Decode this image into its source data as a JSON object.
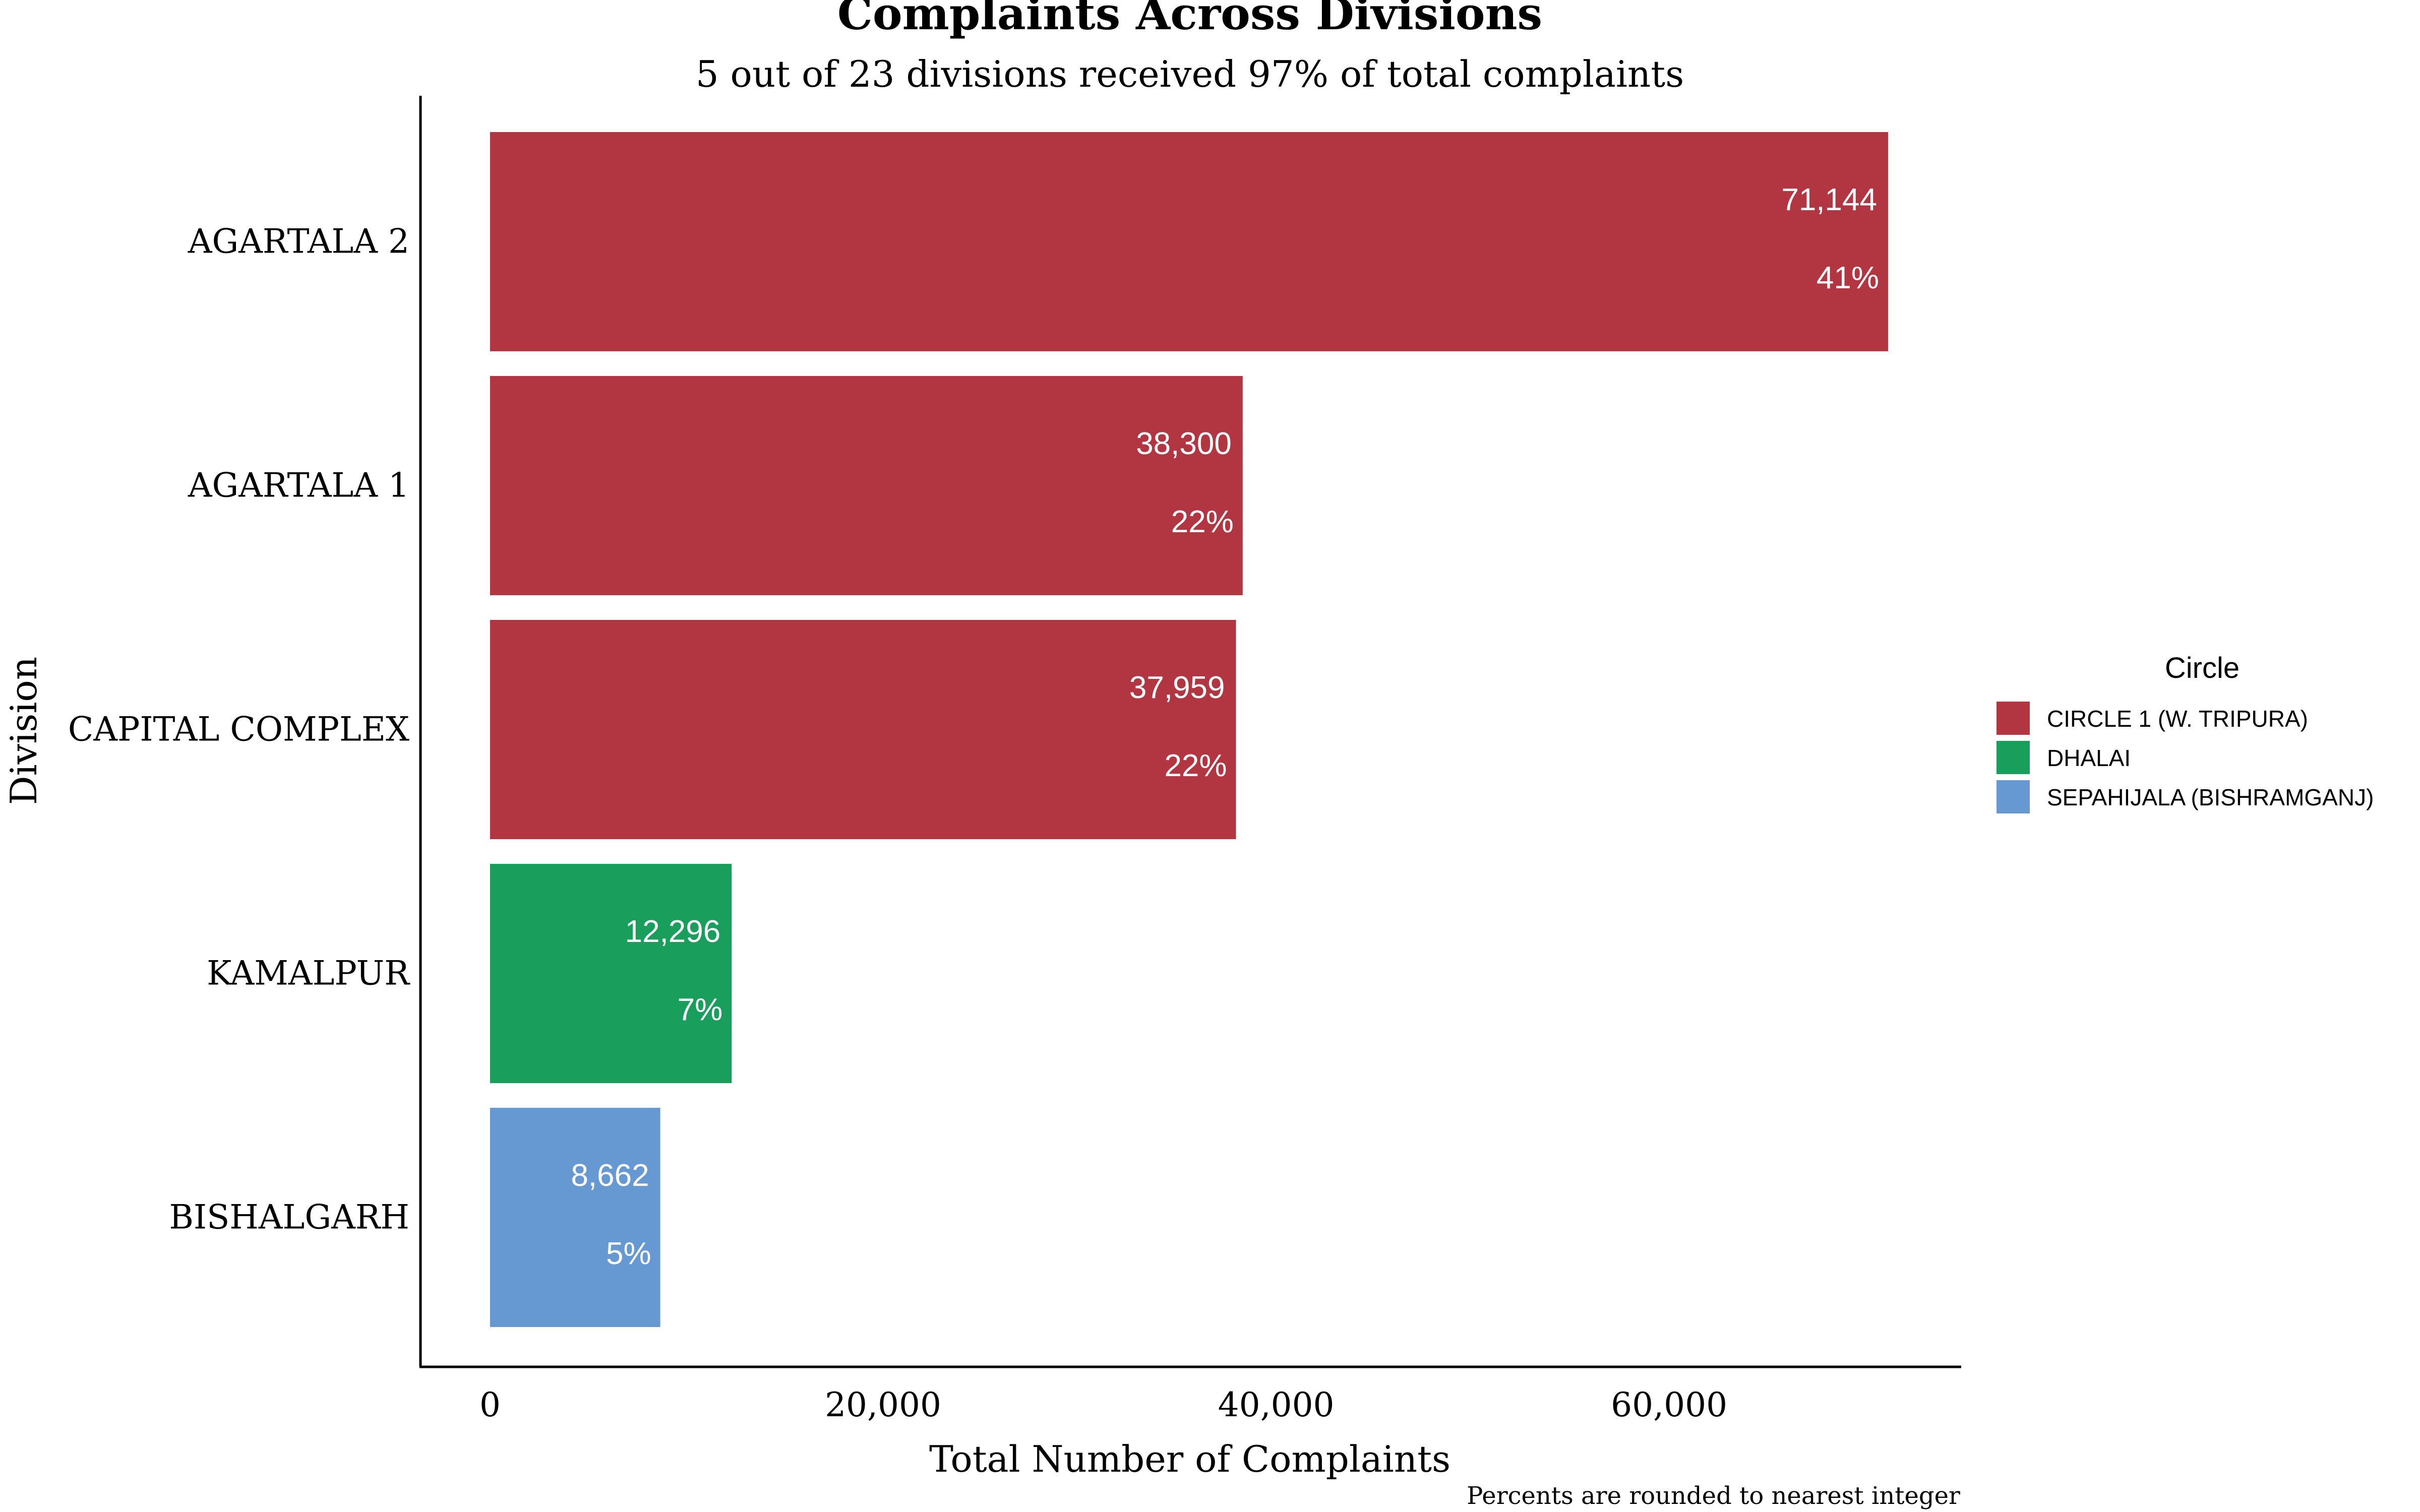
{
  "chart_data": {
    "type": "bar",
    "orientation": "horizontal",
    "title": "Complaints Across Divisions",
    "subtitle": "5 out of 23 divisions received 97% of total complaints",
    "xlabel": "Total Number of Complaints",
    "ylabel": "Division",
    "caption": "Percents are rounded to nearest integer",
    "categories": [
      "AGARTALA 2",
      "AGARTALA 1",
      "CAPITAL COMPLEX",
      "KAMALPUR",
      "BISHALGARH"
    ],
    "values": [
      71144,
      38300,
      37959,
      12296,
      8662
    ],
    "value_labels": [
      "71,144",
      "38,300",
      "37,959",
      "12,296",
      "8,662"
    ],
    "percent_labels": [
      "41%",
      "22%",
      "22%",
      "7%",
      "5%"
    ],
    "bar_circle": [
      "CIRCLE 1 (W. TRIPURA)",
      "CIRCLE 1 (W. TRIPURA)",
      "CIRCLE 1 (W. TRIPURA)",
      "DHALAI",
      "SEPAHIJALA (BISHRAMGANJ)"
    ],
    "xticks": [
      0,
      20000,
      40000,
      60000
    ],
    "xtick_labels": [
      "0",
      "20,000",
      "40,000",
      "60,000"
    ],
    "xlim": [
      -3500,
      75000
    ],
    "grid": false,
    "legend": {
      "title": "Circle",
      "placement": "right",
      "entries": [
        {
          "name": "CIRCLE 1 (W. TRIPURA)",
          "color": "#B23641"
        },
        {
          "name": "DHALAI",
          "color": "#1A9E5C"
        },
        {
          "name": "SEPAHIJALA (BISHRAMGANJ)",
          "color": "#6699D2"
        }
      ]
    }
  }
}
